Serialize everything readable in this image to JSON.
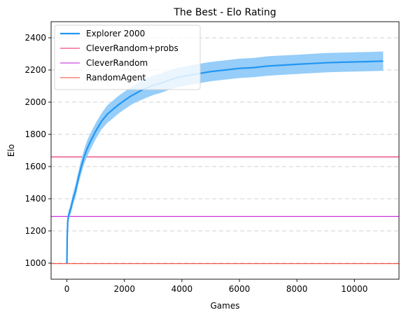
{
  "chart_data": {
    "type": "line",
    "title": "The Best - Elo Rating",
    "xlabel": "Games",
    "ylabel": "Elo",
    "xlim": [
      -550,
      11550
    ],
    "ylim": [
      900,
      2500
    ],
    "xticks": [
      0,
      2000,
      4000,
      6000,
      8000,
      10000
    ],
    "yticks": [
      1000,
      1200,
      1400,
      1600,
      1800,
      2000,
      2200,
      2400
    ],
    "grid": "y-dashed",
    "legend_placement": "top-left",
    "series": [
      {
        "name": "Explorer 2000",
        "kind": "line-with-band",
        "color": "#2196f3",
        "band_color": "#90caf9",
        "x": [
          0,
          10,
          30,
          60,
          100,
          150,
          200,
          300,
          400,
          500,
          600,
          700,
          800,
          1000,
          1200,
          1400,
          1600,
          1800,
          2000,
          2200,
          2400,
          2600,
          2800,
          3000,
          3300,
          3600,
          3900,
          4200,
          4500,
          5000,
          5500,
          6000,
          6500,
          7000,
          7500,
          8000,
          8500,
          9000,
          9500,
          10000,
          10500,
          11000
        ],
        "values": [
          1000,
          1160,
          1260,
          1300,
          1320,
          1350,
          1390,
          1450,
          1530,
          1600,
          1660,
          1710,
          1750,
          1820,
          1880,
          1925,
          1955,
          1985,
          2010,
          2035,
          2055,
          2075,
          2090,
          2105,
          2120,
          2140,
          2155,
          2165,
          2175,
          2190,
          2200,
          2210,
          2215,
          2225,
          2230,
          2235,
          2240,
          2245,
          2248,
          2250,
          2252,
          2255
        ],
        "band": [
          0,
          20,
          25,
          30,
          30,
          35,
          35,
          40,
          40,
          45,
          45,
          50,
          50,
          50,
          50,
          55,
          55,
          55,
          55,
          55,
          55,
          60,
          60,
          60,
          60,
          60,
          60,
          60,
          60,
          60,
          60,
          60,
          60,
          60,
          60,
          60,
          60,
          60,
          60,
          60,
          60,
          60
        ]
      },
      {
        "name": "CleverRandom+probs",
        "kind": "hline",
        "value": 1660,
        "color": "#e91e63"
      },
      {
        "name": "CleverRandom",
        "kind": "hline",
        "value": 1290,
        "color": "#c41ad6"
      },
      {
        "name": "RandomAgent",
        "kind": "hline",
        "value": 997,
        "color": "#f44336"
      }
    ]
  }
}
